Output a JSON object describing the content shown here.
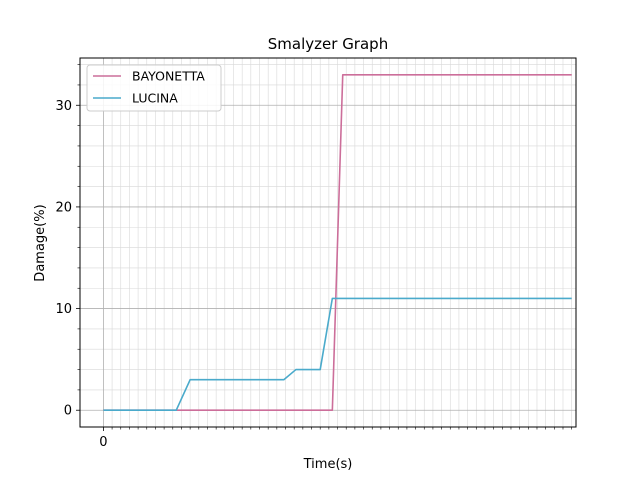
{
  "chart_data": {
    "type": "line",
    "title": "Smalyzer Graph",
    "xlabel": "Time(s)",
    "ylabel": "Damage(%)",
    "xlim": [
      -1.35,
      27.25
    ],
    "ylim": [
      -1.65,
      34.65
    ],
    "x_major_ticks": [
      0
    ],
    "x_tick_labels": [
      "0"
    ],
    "y_major_ticks": [
      0,
      10,
      20,
      30
    ],
    "y_tick_labels": [
      "0",
      "10",
      "20",
      "30"
    ],
    "grid": true,
    "minor_grid": true,
    "legend_position": "top-left",
    "series": [
      {
        "name": "BAYONETTA",
        "color": "#cc6e9a",
        "x": [
          0,
          13.2,
          13.8,
          27
        ],
        "y": [
          0,
          0,
          33,
          33
        ]
      },
      {
        "name": "LUCINA",
        "color": "#4aaacb",
        "x": [
          0,
          4.2,
          5.0,
          10.4,
          11.1,
          12.5,
          13.2,
          27
        ],
        "y": [
          0,
          0,
          3,
          3,
          4,
          4,
          11,
          11
        ]
      }
    ]
  }
}
